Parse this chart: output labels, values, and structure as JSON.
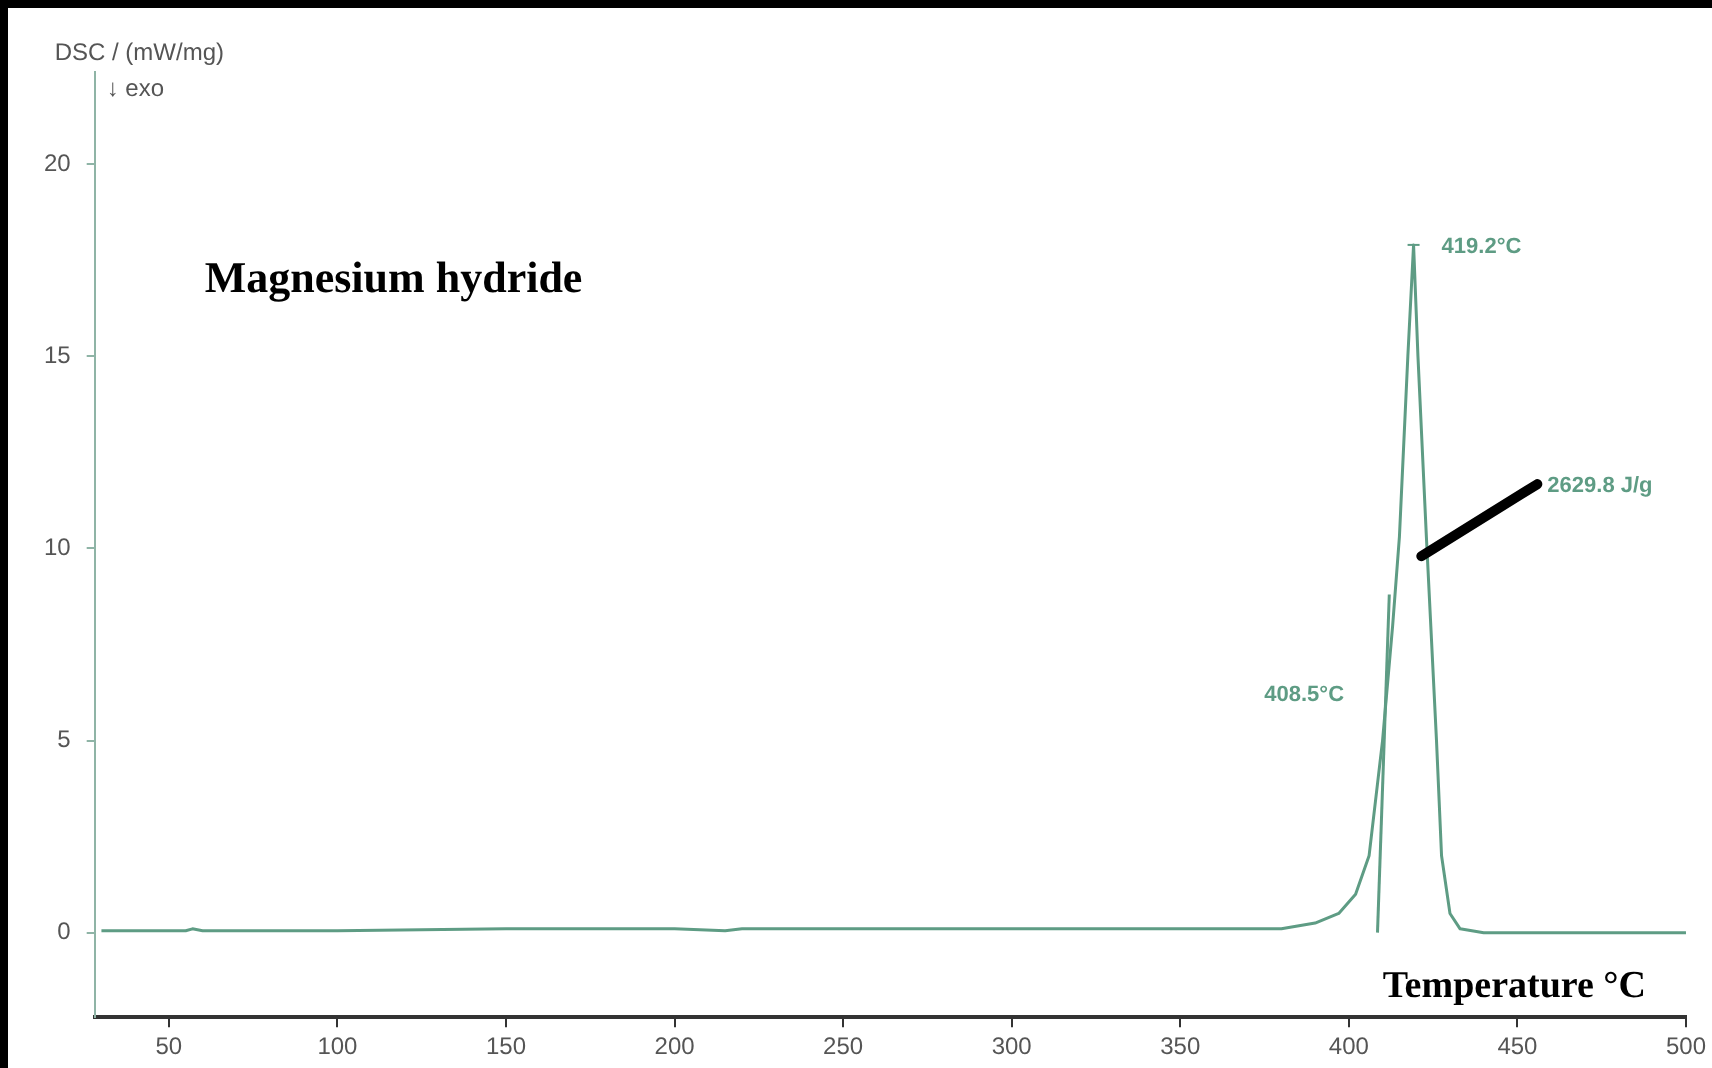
{
  "chart_data": {
    "type": "line",
    "title": "Magnesium hydride",
    "xlabel": "Temperature °C",
    "ylabel": "DSC / (mW/mg)",
    "xlim": [
      28,
      500
    ],
    "xticks": [
      50,
      100,
      150,
      200,
      250,
      300,
      350,
      400,
      450,
      500
    ],
    "ylim": [
      -2.2,
      22.4
    ],
    "yticks": [
      0,
      5,
      10,
      15,
      20
    ],
    "grid": false,
    "legend": false,
    "marker": "none",
    "line_style": "solid",
    "series": [
      {
        "color": "#5e9c84",
        "x": [
          30,
          55,
          57,
          60,
          100,
          150,
          200,
          215,
          220,
          250,
          300,
          350,
          380,
          390,
          397,
          402,
          406,
          410,
          413,
          415,
          417.5,
          419.2,
          420.5,
          423,
          426,
          427.5,
          430,
          433,
          440,
          450,
          480,
          500
        ],
        "values": [
          0.05,
          0.05,
          0.1,
          0.05,
          0.05,
          0.1,
          0.1,
          0.05,
          0.1,
          0.1,
          0.1,
          0.1,
          0.1,
          0.25,
          0.5,
          1,
          2,
          5,
          8,
          10.3,
          15,
          17.9,
          15,
          10.3,
          5,
          2,
          0.5,
          0.1,
          0,
          0,
          0,
          0
        ]
      },
      {
        "color": "#5e9c84",
        "x": [
          408.5,
          412
        ],
        "values": [
          0,
          8.8
        ]
      }
    ],
    "annotations": [
      "↓ exo",
      {
        "text": "419.2°C",
        "x": 419.2,
        "y": 17.9
      },
      "408.5°C",
      {
        "text": "2629.8 J/g",
        "x": 421.5,
        "y": 9.8
      }
    ]
  }
}
